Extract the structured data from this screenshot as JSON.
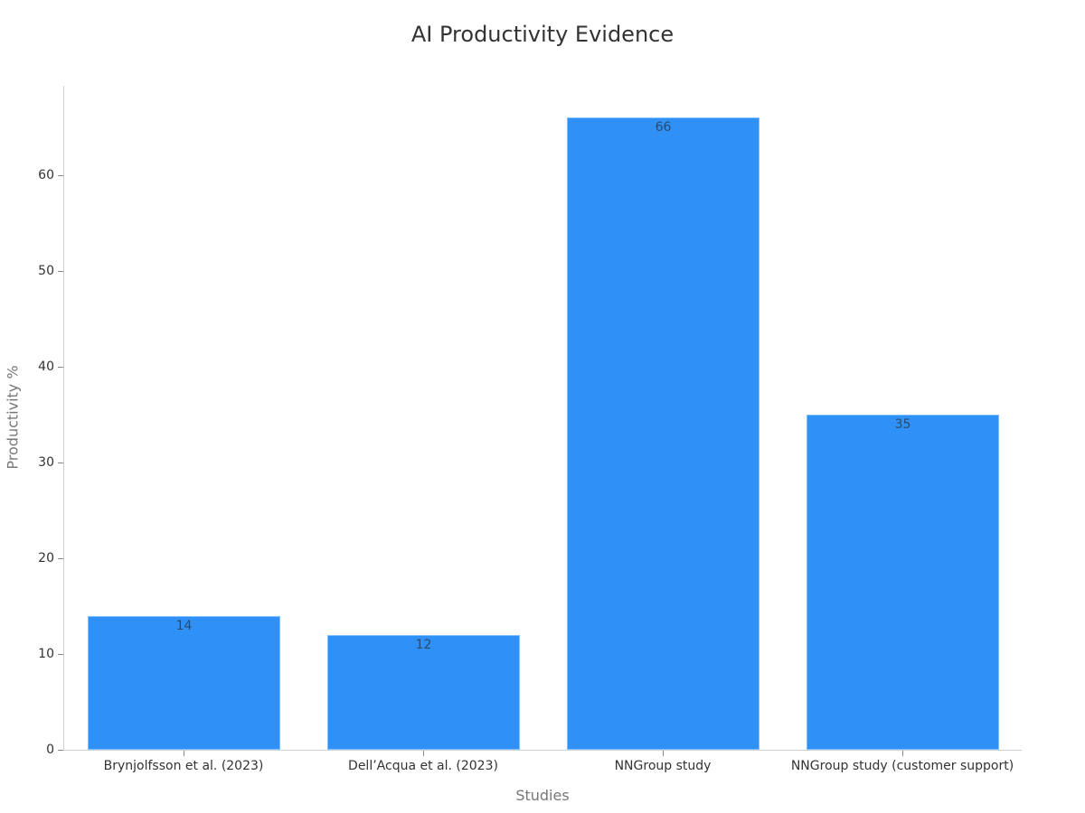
{
  "chart_data": {
    "type": "bar",
    "title": "AI Productivity Evidence",
    "xlabel": "Studies",
    "ylabel": "Productivity %",
    "categories": [
      "Brynjolfsson et al. (2023)",
      "Dell’Acqua et al. (2023)",
      "NNGroup study",
      "NNGroup study (customer support)"
    ],
    "values": [
      14,
      12,
      66,
      35
    ],
    "data_labels": [
      "14",
      "12",
      "66",
      "35"
    ],
    "yticks": [
      "0",
      "10",
      "20",
      "30",
      "40",
      "50",
      "60"
    ],
    "ylim": [
      0,
      69.5
    ],
    "grid": false,
    "legend": null,
    "bar_color": "#2f91f5"
  }
}
